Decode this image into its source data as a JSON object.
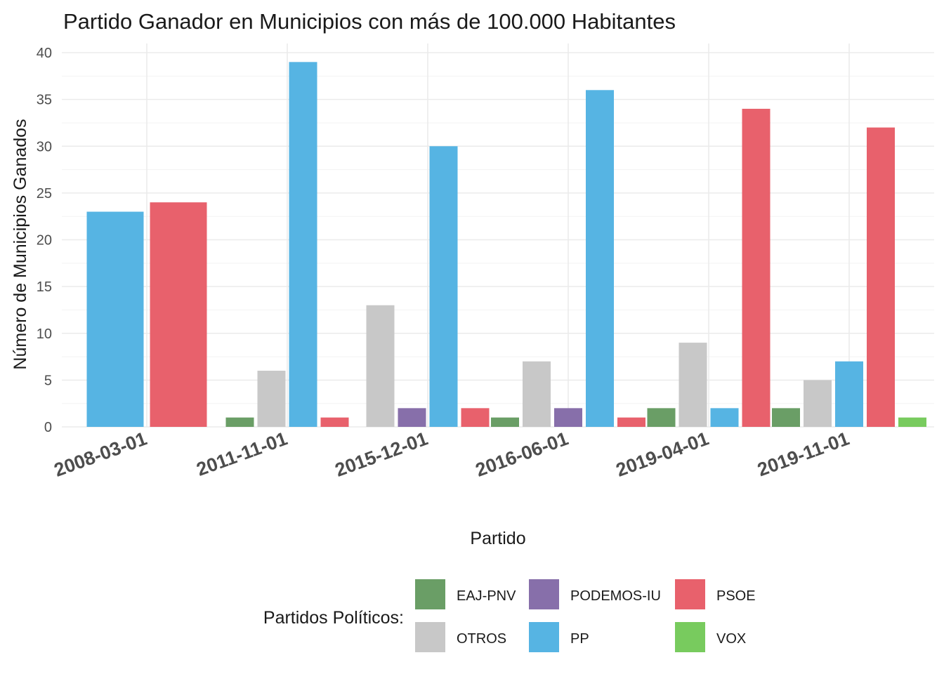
{
  "chart_data": {
    "type": "bar",
    "title": "Partido Ganador en Municipios con más de 100.000 Habitantes",
    "xlabel": "Partido",
    "ylabel": "Número de Municipios Ganados",
    "ylim": [
      0,
      40
    ],
    "yticks": [
      0,
      5,
      10,
      15,
      20,
      25,
      30,
      35,
      40
    ],
    "grid": true,
    "legend_title": "Partidos Políticos:",
    "legend_position": "bottom",
    "categories": [
      "2008-03-01",
      "2011-11-01",
      "2015-12-01",
      "2016-06-01",
      "2019-04-01",
      "2019-11-01"
    ],
    "series": [
      {
        "name": "EAJ-PNV",
        "color": "#6A9E66",
        "values": [
          null,
          1,
          null,
          1,
          2,
          2
        ]
      },
      {
        "name": "OTROS",
        "color": "#C8C8C8",
        "values": [
          null,
          6,
          13,
          7,
          9,
          5
        ]
      },
      {
        "name": "PODEMOS-IU",
        "color": "#876FAA",
        "values": [
          null,
          null,
          2,
          2,
          null,
          null
        ]
      },
      {
        "name": "PP",
        "color": "#56B4E3",
        "values": [
          23,
          39,
          30,
          36,
          2,
          7
        ]
      },
      {
        "name": "PSOE",
        "color": "#E8616C",
        "values": [
          24,
          1,
          2,
          1,
          34,
          32
        ]
      },
      {
        "name": "VOX",
        "color": "#78CB5E",
        "values": [
          null,
          null,
          null,
          null,
          null,
          1
        ]
      }
    ],
    "legend_order": [
      "EAJ-PNV",
      "OTROS",
      "PODEMOS-IU",
      "PP",
      "PSOE",
      "VOX"
    ]
  }
}
